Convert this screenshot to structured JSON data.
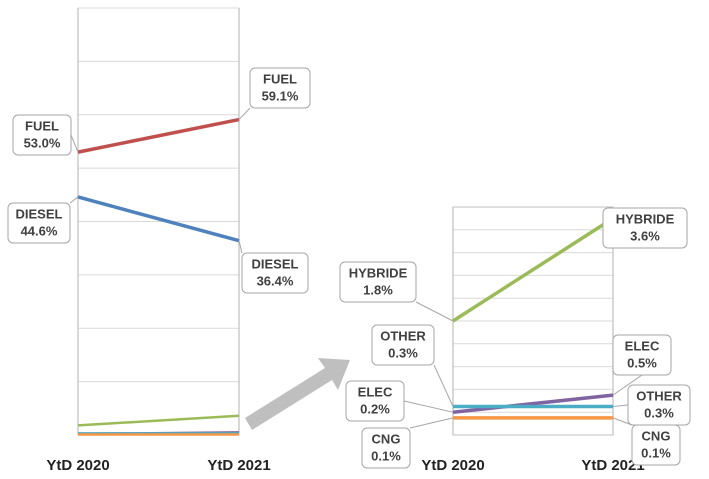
{
  "chart_data": [
    {
      "type": "line",
      "categories": [
        "YtD 2020",
        "YtD 2021"
      ],
      "series": [
        {
          "name": "FUEL",
          "color": "#c0504d",
          "values": [
            53.0,
            59.1
          ],
          "value_labels": [
            "53.0%",
            "59.1%"
          ]
        },
        {
          "name": "DIESEL",
          "color": "#4f81bd",
          "values": [
            44.6,
            36.4
          ],
          "value_labels": [
            "44.6%",
            "36.4%"
          ]
        }
      ],
      "ylim": [
        0,
        80
      ],
      "yticks": [
        0,
        10,
        20,
        30,
        40,
        50,
        60,
        70,
        80
      ],
      "grid": true
    },
    {
      "type": "line",
      "categories": [
        "YtD 2020",
        "YtD 2021"
      ],
      "series": [
        {
          "name": "HYBRIDE",
          "color": "#9bbb59",
          "values": [
            1.8,
            3.6
          ],
          "value_labels": [
            "1.8%",
            "3.6%"
          ]
        },
        {
          "name": "ELEC",
          "color": "#8064a2",
          "values": [
            0.2,
            0.5
          ],
          "value_labels": [
            "0.2%",
            "0.5%"
          ]
        },
        {
          "name": "OTHER",
          "color": "#4bacc6",
          "values": [
            0.3,
            0.3
          ],
          "value_labels": [
            "0.3%",
            "0.3%"
          ]
        },
        {
          "name": "CNG",
          "color": "#f79646",
          "values": [
            0.1,
            0.1
          ],
          "value_labels": [
            "0.1%",
            "0.1%"
          ]
        }
      ],
      "ylim": [
        -0.2,
        3.8
      ],
      "yticks": [
        -0.2,
        0.2,
        0.6,
        1.0,
        1.4,
        1.8,
        2.2,
        2.6,
        3.0,
        3.4,
        3.8
      ],
      "grid": true
    }
  ]
}
